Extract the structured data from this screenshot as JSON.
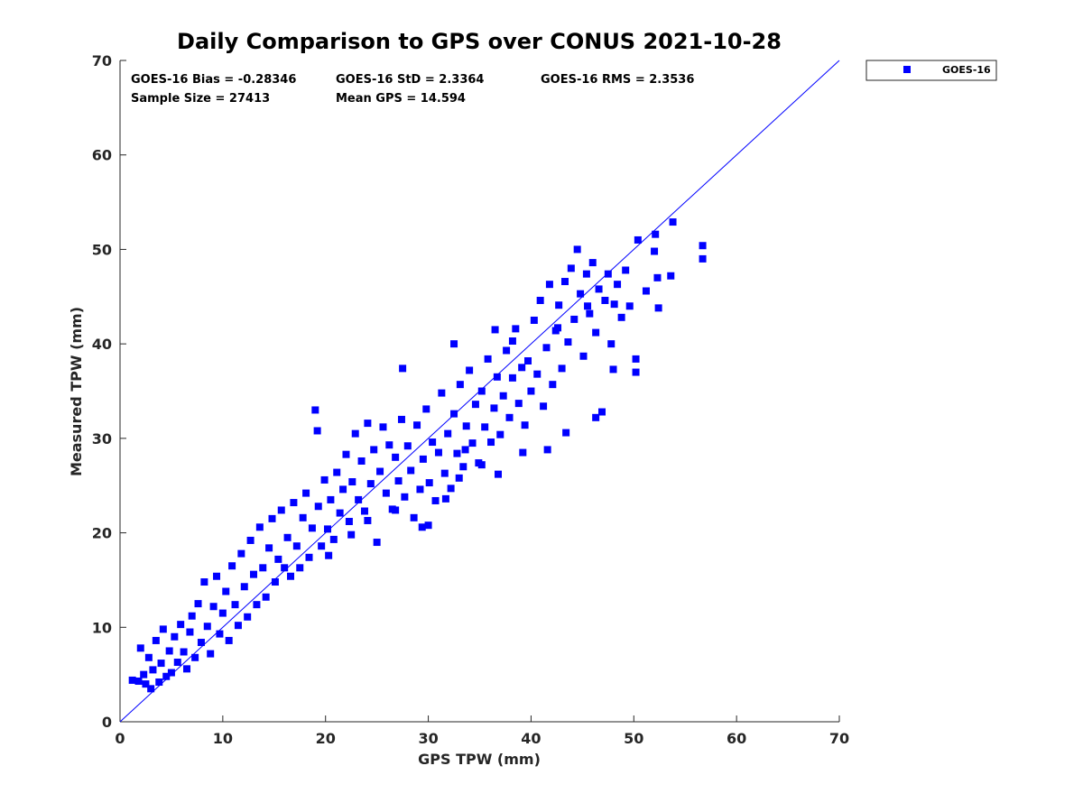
{
  "chart_data": {
    "type": "scatter",
    "title": "Daily Comparison to GPS over CONUS 2021-10-28",
    "xlabel": "GPS TPW (mm)",
    "ylabel": "Measured TPW (mm)",
    "xlim": [
      0,
      70
    ],
    "ylim": [
      0,
      70
    ],
    "xticks": [
      "0",
      "10",
      "20",
      "30",
      "40",
      "50",
      "60",
      "70"
    ],
    "yticks": [
      "0",
      "10",
      "20",
      "30",
      "40",
      "50",
      "60",
      "70"
    ],
    "grid": false,
    "legend_position": "outside-top-right",
    "reference_line": {
      "name": "1:1 line",
      "from": [
        0,
        0
      ],
      "to": [
        70,
        70
      ],
      "color": "#0000ff"
    },
    "stats": [
      "GOES-16 Bias = -0.28346",
      "GOES-16 StD = 2.3364",
      "GOES-16 RMS = 2.3536",
      "Sample Size = 27413",
      "Mean GPS = 14.594"
    ],
    "series": [
      {
        "name": "GOES-16",
        "color": "#0000ff",
        "marker": "square",
        "points": [
          [
            1.2,
            4.4
          ],
          [
            1.8,
            4.3
          ],
          [
            2.0,
            7.8
          ],
          [
            2.3,
            5.0
          ],
          [
            2.5,
            4.0
          ],
          [
            2.8,
            6.8
          ],
          [
            3.0,
            3.5
          ],
          [
            3.2,
            5.5
          ],
          [
            3.5,
            8.6
          ],
          [
            3.8,
            4.2
          ],
          [
            4.0,
            6.2
          ],
          [
            4.2,
            9.8
          ],
          [
            4.5,
            4.8
          ],
          [
            4.8,
            7.5
          ],
          [
            5.0,
            5.2
          ],
          [
            5.3,
            9.0
          ],
          [
            5.6,
            6.3
          ],
          [
            5.9,
            10.3
          ],
          [
            6.2,
            7.4
          ],
          [
            6.5,
            5.6
          ],
          [
            6.8,
            9.5
          ],
          [
            7.0,
            11.2
          ],
          [
            7.3,
            6.8
          ],
          [
            7.6,
            12.5
          ],
          [
            7.9,
            8.4
          ],
          [
            8.2,
            14.8
          ],
          [
            8.5,
            10.1
          ],
          [
            8.8,
            7.2
          ],
          [
            9.1,
            12.2
          ],
          [
            9.4,
            15.4
          ],
          [
            9.7,
            9.3
          ],
          [
            10.0,
            11.5
          ],
          [
            10.3,
            13.8
          ],
          [
            10.6,
            8.6
          ],
          [
            10.9,
            16.5
          ],
          [
            11.2,
            12.4
          ],
          [
            11.5,
            10.2
          ],
          [
            11.8,
            17.8
          ],
          [
            12.1,
            14.3
          ],
          [
            12.4,
            11.1
          ],
          [
            12.7,
            19.2
          ],
          [
            13.0,
            15.6
          ],
          [
            13.3,
            12.4
          ],
          [
            13.6,
            20.6
          ],
          [
            13.9,
            16.3
          ],
          [
            14.2,
            13.2
          ],
          [
            14.5,
            18.4
          ],
          [
            14.8,
            21.5
          ],
          [
            15.1,
            14.8
          ],
          [
            15.4,
            17.2
          ],
          [
            15.7,
            22.4
          ],
          [
            16.0,
            16.3
          ],
          [
            16.3,
            19.5
          ],
          [
            16.6,
            15.4
          ],
          [
            16.9,
            23.2
          ],
          [
            17.2,
            18.6
          ],
          [
            17.5,
            16.3
          ],
          [
            17.8,
            21.6
          ],
          [
            18.1,
            24.2
          ],
          [
            18.4,
            17.4
          ],
          [
            18.7,
            20.5
          ],
          [
            19.0,
            33.0
          ],
          [
            19.2,
            30.8
          ],
          [
            19.3,
            22.8
          ],
          [
            19.6,
            18.6
          ],
          [
            19.9,
            25.6
          ],
          [
            20.2,
            20.4
          ],
          [
            20.5,
            23.5
          ],
          [
            20.8,
            19.3
          ],
          [
            21.1,
            26.4
          ],
          [
            21.4,
            22.1
          ],
          [
            21.7,
            24.6
          ],
          [
            22.0,
            28.3
          ],
          [
            22.3,
            21.2
          ],
          [
            22.6,
            25.4
          ],
          [
            22.9,
            30.5
          ],
          [
            23.2,
            23.5
          ],
          [
            23.5,
            27.6
          ],
          [
            23.8,
            22.3
          ],
          [
            24.1,
            31.6
          ],
          [
            24.4,
            25.2
          ],
          [
            24.7,
            28.8
          ],
          [
            25.0,
            19.0
          ],
          [
            25.3,
            26.5
          ],
          [
            25.6,
            31.2
          ],
          [
            25.9,
            24.2
          ],
          [
            26.2,
            29.3
          ],
          [
            26.5,
            22.5
          ],
          [
            26.8,
            28.0
          ],
          [
            27.1,
            25.5
          ],
          [
            27.4,
            32.0
          ],
          [
            27.7,
            23.8
          ],
          [
            28.0,
            29.2
          ],
          [
            28.3,
            26.6
          ],
          [
            28.6,
            21.6
          ],
          [
            28.9,
            31.4
          ],
          [
            29.2,
            24.6
          ],
          [
            29.5,
            27.8
          ],
          [
            29.8,
            33.1
          ],
          [
            30.1,
            25.3
          ],
          [
            30.4,
            29.6
          ],
          [
            30.7,
            23.4
          ],
          [
            31.0,
            28.5
          ],
          [
            31.3,
            34.8
          ],
          [
            31.6,
            26.3
          ],
          [
            31.9,
            30.5
          ],
          [
            32.2,
            24.7
          ],
          [
            32.5,
            32.6
          ],
          [
            32.8,
            28.4
          ],
          [
            33.1,
            35.7
          ],
          [
            33.4,
            27.0
          ],
          [
            33.7,
            31.3
          ],
          [
            34.0,
            37.2
          ],
          [
            34.3,
            29.5
          ],
          [
            34.6,
            33.6
          ],
          [
            34.9,
            27.4
          ],
          [
            35.2,
            35.0
          ],
          [
            35.5,
            31.2
          ],
          [
            35.8,
            38.4
          ],
          [
            36.1,
            29.6
          ],
          [
            36.4,
            33.2
          ],
          [
            36.7,
            36.5
          ],
          [
            37.0,
            30.4
          ],
          [
            37.3,
            34.5
          ],
          [
            37.6,
            39.3
          ],
          [
            37.9,
            32.2
          ],
          [
            38.2,
            36.4
          ],
          [
            38.5,
            41.6
          ],
          [
            38.8,
            33.7
          ],
          [
            39.1,
            37.5
          ],
          [
            39.4,
            31.4
          ],
          [
            39.7,
            38.2
          ],
          [
            40.0,
            35.0
          ],
          [
            40.3,
            42.5
          ],
          [
            40.6,
            36.8
          ],
          [
            40.9,
            44.6
          ],
          [
            41.2,
            33.4
          ],
          [
            41.5,
            39.6
          ],
          [
            41.8,
            46.3
          ],
          [
            42.1,
            35.7
          ],
          [
            42.4,
            41.4
          ],
          [
            42.7,
            44.1
          ],
          [
            43.0,
            37.4
          ],
          [
            43.3,
            46.6
          ],
          [
            43.6,
            40.2
          ],
          [
            43.9,
            48.0
          ],
          [
            44.2,
            42.6
          ],
          [
            44.5,
            50.0
          ],
          [
            44.8,
            45.3
          ],
          [
            45.1,
            38.7
          ],
          [
            45.4,
            47.4
          ],
          [
            45.7,
            43.2
          ],
          [
            46.0,
            48.6
          ],
          [
            46.3,
            41.2
          ],
          [
            46.6,
            45.8
          ],
          [
            46.9,
            32.8
          ],
          [
            47.2,
            44.6
          ],
          [
            47.5,
            47.4
          ],
          [
            47.8,
            40.0
          ],
          [
            48.1,
            44.2
          ],
          [
            48.4,
            46.3
          ],
          [
            48.8,
            42.8
          ],
          [
            49.2,
            47.8
          ],
          [
            49.6,
            44.0
          ],
          [
            50.2,
            38.4
          ],
          [
            50.4,
            51.0
          ],
          [
            51.2,
            45.6
          ],
          [
            52.1,
            51.6
          ],
          [
            52.3,
            47.0
          ],
          [
            52.4,
            43.8
          ],
          [
            52.0,
            49.8
          ],
          [
            53.6,
            47.2
          ],
          [
            53.8,
            52.9
          ],
          [
            56.7,
            50.4
          ],
          [
            56.7,
            49.0
          ],
          [
            36.8,
            26.2
          ],
          [
            39.2,
            28.5
          ],
          [
            41.6,
            28.8
          ],
          [
            43.4,
            30.6
          ],
          [
            46.3,
            32.2
          ],
          [
            27.5,
            37.4
          ],
          [
            32.5,
            40.0
          ],
          [
            36.5,
            41.5
          ],
          [
            26.8,
            22.4
          ],
          [
            29.4,
            20.6
          ],
          [
            31.7,
            23.6
          ],
          [
            33.0,
            25.8
          ],
          [
            24.1,
            21.3
          ],
          [
            22.5,
            19.8
          ],
          [
            20.3,
            17.6
          ],
          [
            38.2,
            40.3
          ],
          [
            42.6,
            41.7
          ],
          [
            45.5,
            44.0
          ],
          [
            48.0,
            37.3
          ],
          [
            50.2,
            37.0
          ],
          [
            35.2,
            27.2
          ],
          [
            33.6,
            28.8
          ],
          [
            30.0,
            20.8
          ]
        ]
      }
    ]
  }
}
